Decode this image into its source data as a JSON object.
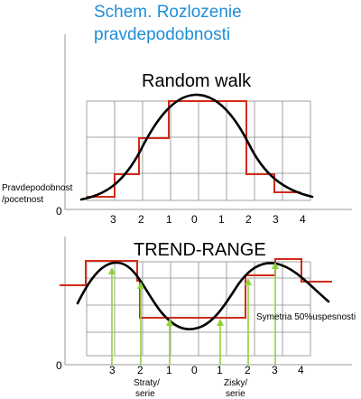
{
  "header": {
    "title_line1": "Schem. Rozlozenie",
    "title_line2": "pravdepodobnosti"
  },
  "top_chart": {
    "title": "Random walk",
    "y_axis_label_line1": "Pravdepodobnost",
    "y_axis_label_line2": "/pocetnost",
    "origin_label": "0",
    "x_ticks": [
      "3",
      "2",
      "1",
      "0",
      "1",
      "2",
      "3",
      "4"
    ]
  },
  "bottom_chart": {
    "title": "TREND-RANGE",
    "origin_label": "0",
    "x_ticks": [
      "3",
      "2",
      "1",
      "0",
      "1",
      "2",
      "3",
      "4"
    ],
    "annotation": "Symetria 50%uspesnosti",
    "loss_label_line1": "Straty/",
    "loss_label_line2": "serie",
    "gain_label_line1": "Zisky/",
    "gain_label_line2": "serie"
  },
  "colors": {
    "title": "#1f8ed6",
    "steps": "#d42a1a",
    "arrows": "#8fd13a",
    "curve": "#000000",
    "grid": "#8a8a8a"
  }
}
